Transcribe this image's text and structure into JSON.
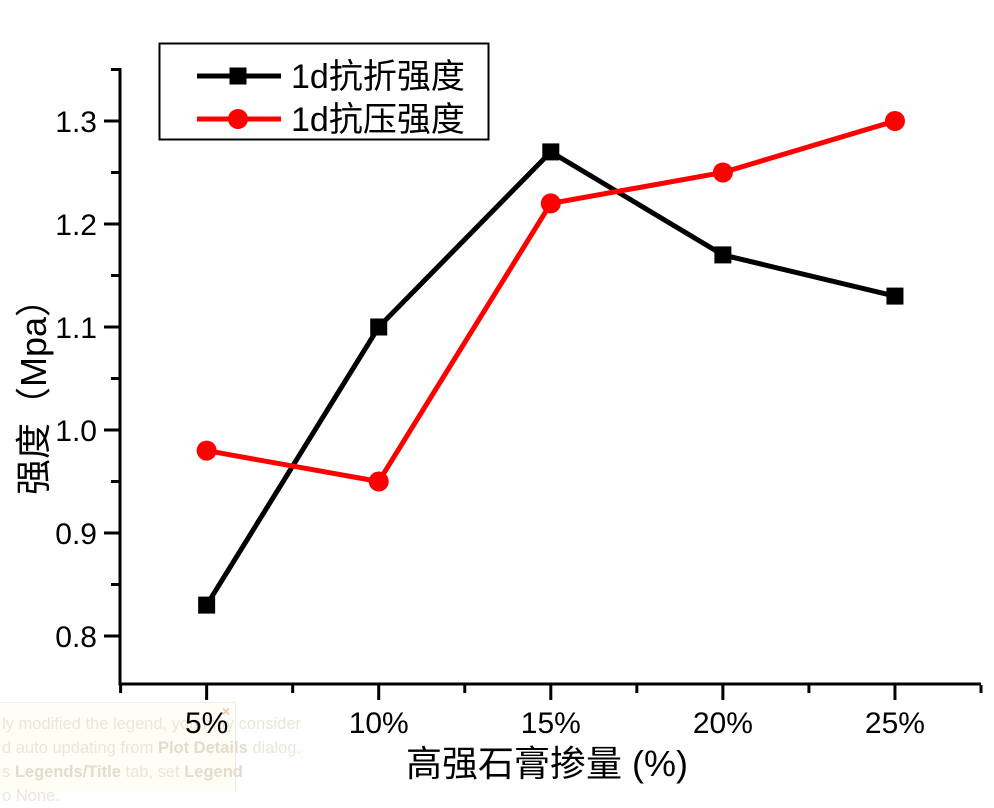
{
  "watermark": {
    "close_label": "×",
    "lines": [
      [
        {
          "t": "ly modified the legend, you may consider",
          "b": false
        }
      ],
      [
        {
          "t": "d auto updating from ",
          "b": false
        },
        {
          "t": "Plot Details",
          "b": true
        },
        {
          "t": " dialog.",
          "b": false
        }
      ],
      [
        {
          "t": "s ",
          "b": false
        },
        {
          "t": "Legends/Title",
          "b": true
        },
        {
          "t": " tab, set ",
          "b": false
        },
        {
          "t": "Legend",
          "b": true
        }
      ],
      [
        {
          "t": "o None.",
          "b": false
        }
      ]
    ]
  },
  "chart_data": {
    "type": "line",
    "title": "",
    "xlabel": "高强石膏掺量 (%)",
    "ylabel": "强度（Mpa）",
    "x": [
      5,
      10,
      15,
      20,
      25
    ],
    "x_tick_labels": [
      "5%",
      "10%",
      "15%",
      "20%",
      "25%"
    ],
    "x_ticks_minor": [
      2.5,
      7.5,
      12.5,
      17.5,
      22.5,
      27.5
    ],
    "xlim": [
      2.5,
      27.5
    ],
    "ylim": [
      0.75,
      1.35
    ],
    "y_ticks_major": [
      0.8,
      0.9,
      1.0,
      1.1,
      1.2,
      1.3
    ],
    "y_tick_labels": [
      "0.8",
      "0.9",
      "1.0",
      "1.1",
      "1.2",
      "1.3"
    ],
    "y_ticks_minor": [
      0.85,
      0.95,
      1.05,
      1.15,
      1.25,
      1.35
    ],
    "grid": false,
    "legend_position": "top-left",
    "series": [
      {
        "name": "1d抗折强度",
        "color": "#000000",
        "marker": "square",
        "values": [
          0.83,
          1.1,
          1.27,
          1.17,
          1.13
        ]
      },
      {
        "name": "1d抗压强度",
        "color": "#fe0000",
        "marker": "circle",
        "values": [
          0.98,
          0.95,
          1.22,
          1.25,
          1.3
        ]
      }
    ],
    "colors": {
      "axis": "#000000",
      "background": "#ffffff",
      "legend_border": "#000000"
    }
  }
}
